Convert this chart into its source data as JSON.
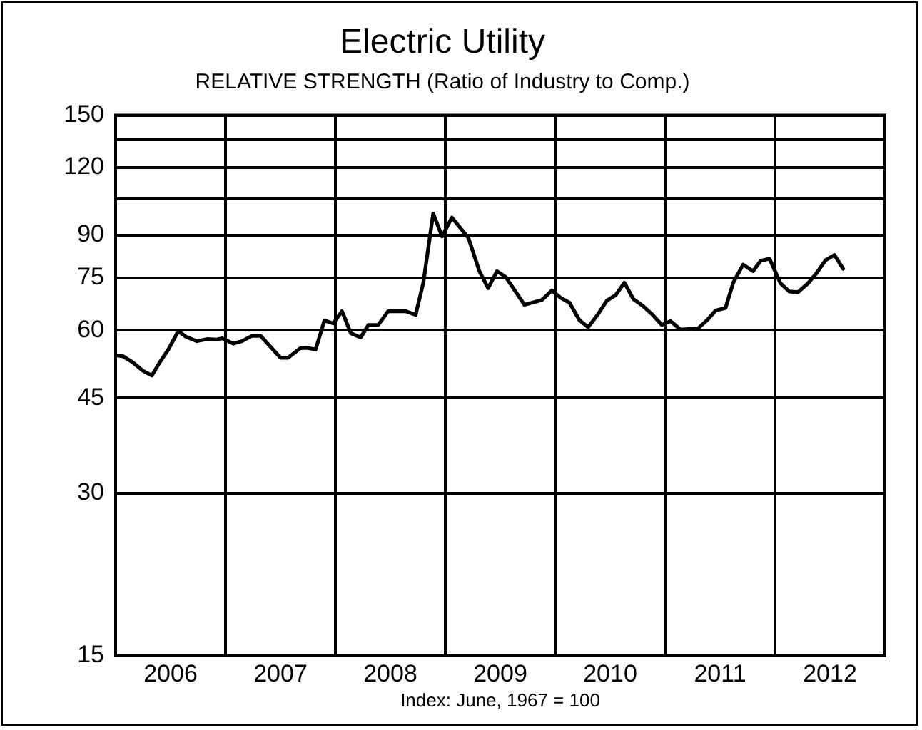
{
  "chart_data": {
    "type": "line",
    "title": "Electric Utility",
    "subtitle": "RELATIVE STRENGTH (Ratio of Industry to Comp.)",
    "annotations": [
      "Index: June, 1967 = 100"
    ],
    "log": true,
    "grid": true,
    "legend": false,
    "marker": "none",
    "line_style": "solid",
    "xlim": [
      2006,
      2013
    ],
    "xticks": [
      {
        "value": 2006.5,
        "label": "2006"
      },
      {
        "value": 2007,
        "label": null
      },
      {
        "value": 2007.5,
        "label": "2007"
      },
      {
        "value": 2008,
        "label": null
      },
      {
        "value": 2008.5,
        "label": "2008"
      },
      {
        "value": 2009,
        "label": null
      },
      {
        "value": 2009.5,
        "label": "2009"
      },
      {
        "value": 2010,
        "label": null
      },
      {
        "value": 2010.5,
        "label": "2010"
      },
      {
        "value": 2011,
        "label": null
      },
      {
        "value": 2011.5,
        "label": "2011"
      },
      {
        "value": 2012,
        "label": null
      },
      {
        "value": 2012.5,
        "label": "2012"
      }
    ],
    "ylim": [
      15,
      150
    ],
    "yticks": [
      15,
      30,
      45,
      60,
      75,
      90,
      {
        "value": 105,
        "label": null
      },
      120,
      {
        "value": 135,
        "label": null
      },
      150
    ],
    "series": [
      {
        "color": "#000000",
        "x": [
          2006.0,
          2006.07,
          2006.16,
          2006.25,
          2006.33,
          2006.4,
          2006.48,
          2006.57,
          2006.64,
          2006.74,
          2006.83,
          2006.92,
          2006.97,
          2007.07,
          2007.15,
          2007.24,
          2007.32,
          2007.5,
          2007.57,
          2007.68,
          2007.74,
          2007.82,
          2007.9,
          2007.98,
          2008.06,
          2008.14,
          2008.23,
          2008.3,
          2008.39,
          2008.48,
          2008.64,
          2008.73,
          2008.8,
          2008.89,
          2008.97,
          2009.06,
          2009.21,
          2009.31,
          2009.39,
          2009.47,
          2009.55,
          2009.72,
          2009.88,
          2009.97,
          2010.05,
          2010.13,
          2010.22,
          2010.3,
          2010.39,
          2010.47,
          2010.55,
          2010.63,
          2010.71,
          2010.79,
          2010.88,
          2010.97,
          2011.05,
          2011.14,
          2011.3,
          2011.38,
          2011.46,
          2011.55,
          2011.62,
          2011.71,
          2011.8,
          2011.87,
          2011.95,
          2012.05,
          2012.13,
          2012.21,
          2012.3,
          2012.37,
          2012.46,
          2012.54,
          2012.62
        ],
        "values": [
          54.0,
          53.7,
          52.3,
          50.5,
          49.5,
          52.3,
          55.3,
          59.8,
          58.4,
          57.3,
          57.8,
          57.7,
          58.0,
          56.7,
          57.3,
          58.6,
          58.6,
          53.4,
          53.4,
          55.6,
          55.7,
          55.3,
          62.6,
          61.8,
          65.1,
          59.3,
          58.2,
          61.4,
          61.4,
          65.1,
          65.1,
          64.1,
          73.5,
          98.7,
          89.5,
          97.0,
          89.0,
          77.2,
          71.8,
          77.2,
          75.3,
          66.9,
          68.3,
          71.1,
          68.9,
          67.5,
          62.7,
          60.8,
          64.3,
          68.1,
          69.7,
          73.5,
          68.6,
          66.8,
          64.3,
          61.4,
          62.4,
          60.2,
          60.5,
          62.6,
          65.3,
          66.0,
          73.5,
          79.4,
          77.2,
          80.7,
          81.4,
          73.3,
          70.8,
          70.6,
          73.3,
          76.2,
          80.9,
          82.7,
          78.0
        ]
      }
    ]
  }
}
